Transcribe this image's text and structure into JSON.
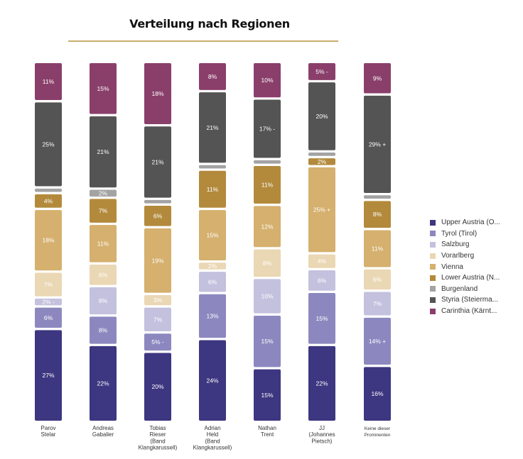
{
  "chart_data": {
    "type": "bar",
    "stacked": true,
    "title": "Verteilung nach Regionen",
    "categories": [
      [
        "Parov",
        "Stelar"
      ],
      [
        "Andreas",
        "Gabalier"
      ],
      [
        "Tobias",
        "Rieser",
        "(Band",
        "Klangkarussell)"
      ],
      [
        "Adrian",
        "Held",
        "(Band",
        "Klangkarussell)"
      ],
      [
        "Nathan",
        "Trent"
      ],
      [
        "JJ",
        "(Johannes",
        "Pietsch)"
      ],
      [
        "Keine dieser",
        "Prominenten"
      ]
    ],
    "series": [
      {
        "name": "Upper Austria (O...",
        "color": "#3d3680",
        "values": [
          27,
          22,
          20,
          24,
          15,
          22,
          16
        ],
        "labels": [
          "27%",
          "22%",
          "20%",
          "24%",
          "15%",
          "22%",
          "16%"
        ]
      },
      {
        "name": "Tyrol (Tirol)",
        "color": "#8c88bf",
        "values": [
          6,
          8,
          5,
          13,
          15,
          15,
          14
        ],
        "labels": [
          "6%",
          "8%",
          "5% -",
          "13%",
          "15%",
          "15%",
          "14% +"
        ]
      },
      {
        "name": "Salzburg",
        "color": "#c4c1de",
        "values": [
          2,
          8,
          7,
          6,
          10,
          6,
          7
        ],
        "labels": [
          "2% -",
          "8%",
          "7%",
          "6%",
          "10%",
          "6%",
          "7%"
        ]
      },
      {
        "name": "Vorarlberg",
        "color": "#ead7b4",
        "values": [
          7,
          6,
          3,
          2,
          8,
          4,
          6
        ],
        "labels": [
          "7%",
          "6%",
          "3%",
          "2%",
          "8%",
          "4%",
          "6%"
        ]
      },
      {
        "name": "Vienna",
        "color": "#d5b06e",
        "values": [
          18,
          11,
          19,
          15,
          12,
          25,
          11
        ],
        "labels": [
          "18%",
          "11%",
          "19%",
          "15%",
          "12%",
          "25% +",
          "11%"
        ]
      },
      {
        "name": "Lower Austria (N...",
        "color": "#b38a3c",
        "values": [
          4,
          7,
          6,
          11,
          11,
          2,
          8
        ],
        "labels": [
          "4%",
          "7%",
          "6%",
          "11%",
          "11%",
          "2%",
          "8%"
        ]
      },
      {
        "name": "Burgenland",
        "color": "#a3a3a3",
        "values": [
          1,
          2,
          1,
          1,
          1,
          1,
          1
        ],
        "labels": [
          "",
          "2%",
          "",
          "",
          "",
          "",
          ""
        ]
      },
      {
        "name": "Styria (Steierma...",
        "color": "#545454",
        "values": [
          25,
          21,
          21,
          21,
          17,
          20,
          29
        ],
        "labels": [
          "25%",
          "21%",
          "21%",
          "21%",
          "17% -",
          "20%",
          "29% +"
        ]
      },
      {
        "name": "Carinthia (Kärnt...",
        "color": "#8a3f6b",
        "values": [
          11,
          15,
          18,
          8,
          10,
          5,
          9
        ],
        "labels": [
          "11%",
          "15%",
          "18%",
          "8%",
          "10%",
          "5% -",
          "9%"
        ]
      }
    ],
    "ylim": [
      0,
      100
    ],
    "legend_position": "right",
    "grid": false
  }
}
